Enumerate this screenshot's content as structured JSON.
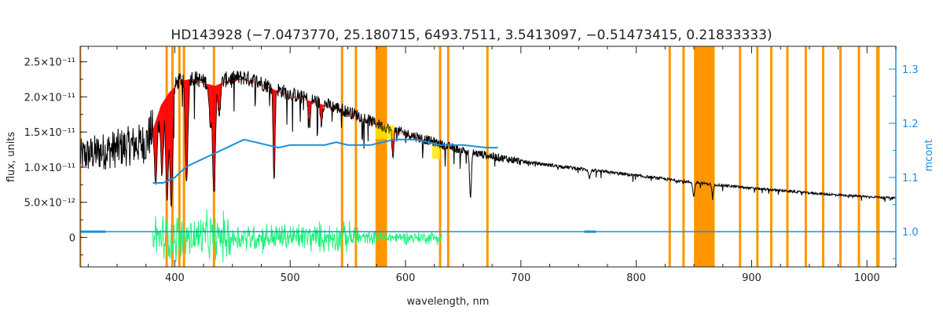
{
  "chart_data": {
    "type": "line",
    "title": "HD143928   (−7.0473770, 25.180715, 6493.7511, 3.5413097, −0.51473415, 0.21833333)",
    "xlabel": "wavelength, nm",
    "ylabel": "flux, units",
    "y2label": "mcont",
    "xlim": [
      318,
      1025
    ],
    "ylim": [
      -4.2e-12,
      2.72e-11
    ],
    "y2lim": [
      0.935,
      1.342
    ],
    "x_ticks": [
      {
        "value": 400,
        "label": "400"
      },
      {
        "value": 500,
        "label": "500"
      },
      {
        "value": 600,
        "label": "600"
      },
      {
        "value": 700,
        "label": "700"
      },
      {
        "value": 800,
        "label": "800"
      },
      {
        "value": 900,
        "label": "900"
      },
      {
        "value": 1000,
        "label": "1000"
      }
    ],
    "y_ticks": [
      {
        "value": 0,
        "label": "0"
      },
      {
        "value": 5e-12,
        "label": "5.0×10⁻¹²"
      },
      {
        "value": 1e-11,
        "label": "1.0×10⁻¹¹"
      },
      {
        "value": 1.5e-11,
        "label": "1.5×10⁻¹¹"
      },
      {
        "value": 2e-11,
        "label": "2.0×10⁻¹¹"
      },
      {
        "value": 2.5e-11,
        "label": "2.5×10⁻¹¹"
      }
    ],
    "y2_ticks": [
      {
        "value": 1.0,
        "label": "1.0"
      },
      {
        "value": 1.1,
        "label": "1.1"
      },
      {
        "value": 1.2,
        "label": "1.2"
      },
      {
        "value": 1.3,
        "label": "1.3"
      }
    ],
    "masked_lines_nm": [
      318,
      393,
      398,
      404,
      408,
      434,
      545,
      557,
      630,
      637,
      671,
      829,
      841,
      890,
      905,
      917,
      931,
      947,
      962,
      977,
      993
    ],
    "masked_bands_nm": [
      [
        574,
        584
      ],
      [
        850,
        868
      ],
      [
        1008,
        1011
      ]
    ],
    "masked_band_thin_nm": [
      [
        574,
        576
      ]
    ],
    "flux_continuum": [
      [
        318,
        1.15e-11
      ],
      [
        330,
        1.2e-11
      ],
      [
        345,
        1.25e-11
      ],
      [
        360,
        1.3e-11
      ],
      [
        375,
        1.35e-11
      ],
      [
        381,
        1.55e-11
      ],
      [
        388,
        1.9e-11
      ],
      [
        395,
        2.08e-11
      ],
      [
        405,
        2.25e-11
      ],
      [
        415,
        2.28e-11
      ],
      [
        425,
        2.22e-11
      ],
      [
        435,
        2.18e-11
      ],
      [
        445,
        2.25e-11
      ],
      [
        460,
        2.28e-11
      ],
      [
        475,
        2.2e-11
      ],
      [
        490,
        2.1e-11
      ],
      [
        505,
        2.02e-11
      ],
      [
        520,
        1.95e-11
      ],
      [
        540,
        1.85e-11
      ],
      [
        560,
        1.73e-11
      ],
      [
        580,
        1.58e-11
      ],
      [
        600,
        1.48e-11
      ],
      [
        620,
        1.38e-11
      ],
      [
        640,
        1.28e-11
      ],
      [
        660,
        1.2e-11
      ],
      [
        680,
        1.14e-11
      ],
      [
        700,
        1.08e-11
      ],
      [
        720,
        1.04e-11
      ],
      [
        740,
        1e-11
      ],
      [
        760,
        9.6e-12
      ],
      [
        780,
        9.2e-12
      ],
      [
        800,
        8.8e-12
      ],
      [
        820,
        8.4e-12
      ],
      [
        845,
        7.9e-12
      ],
      [
        870,
        7.5e-12
      ],
      [
        900,
        7e-12
      ],
      [
        930,
        6.6e-12
      ],
      [
        960,
        6.2e-12
      ],
      [
        990,
        5.9e-12
      ],
      [
        1025,
        5.6e-12
      ]
    ],
    "fit_x_range": [
      381,
      632
    ],
    "absorption_lines": [
      {
        "nm": 383.5,
        "depth": 0.55
      },
      {
        "nm": 388.9,
        "depth": 0.55
      },
      {
        "nm": 393.4,
        "depth": 0.75
      },
      {
        "nm": 397.0,
        "depth": 0.8
      },
      {
        "nm": 410.2,
        "depth": 0.65
      },
      {
        "nm": 430.8,
        "depth": 0.25
      },
      {
        "nm": 434.0,
        "depth": 0.7
      },
      {
        "nm": 438.4,
        "depth": 0.2
      },
      {
        "nm": 486.1,
        "depth": 0.62
      },
      {
        "nm": 516.9,
        "depth": 0.2
      },
      {
        "nm": 527.0,
        "depth": 0.15
      },
      {
        "nm": 589.0,
        "depth": 0.25
      },
      {
        "nm": 656.3,
        "depth": 0.55
      },
      {
        "nm": 759.5,
        "depth": 0.12
      },
      {
        "nm": 849.8,
        "depth": 0.25
      },
      {
        "nm": 866.2,
        "depth": 0.2
      }
    ],
    "mcont": [
      [
        381,
        1.09
      ],
      [
        390,
        1.09
      ],
      [
        400,
        1.1
      ],
      [
        410,
        1.12
      ],
      [
        420,
        1.13
      ],
      [
        430,
        1.14
      ],
      [
        440,
        1.15
      ],
      [
        450,
        1.16
      ],
      [
        460,
        1.17
      ],
      [
        470,
        1.165
      ],
      [
        480,
        1.16
      ],
      [
        490,
        1.155
      ],
      [
        500,
        1.16
      ],
      [
        510,
        1.16
      ],
      [
        520,
        1.16
      ],
      [
        530,
        1.16
      ],
      [
        540,
        1.165
      ],
      [
        550,
        1.16
      ],
      [
        560,
        1.16
      ],
      [
        570,
        1.16
      ],
      [
        580,
        1.165
      ],
      [
        590,
        1.17
      ],
      [
        600,
        1.17
      ],
      [
        610,
        1.17
      ],
      [
        620,
        1.165
      ],
      [
        630,
        1.16
      ],
      [
        650,
        1.16
      ],
      [
        670,
        1.155
      ],
      [
        680,
        1.155
      ]
    ],
    "mcont_baseline": 1.0,
    "residual_x_range": [
      381,
      632
    ],
    "residual_amplitude": 2.5e-12
  }
}
